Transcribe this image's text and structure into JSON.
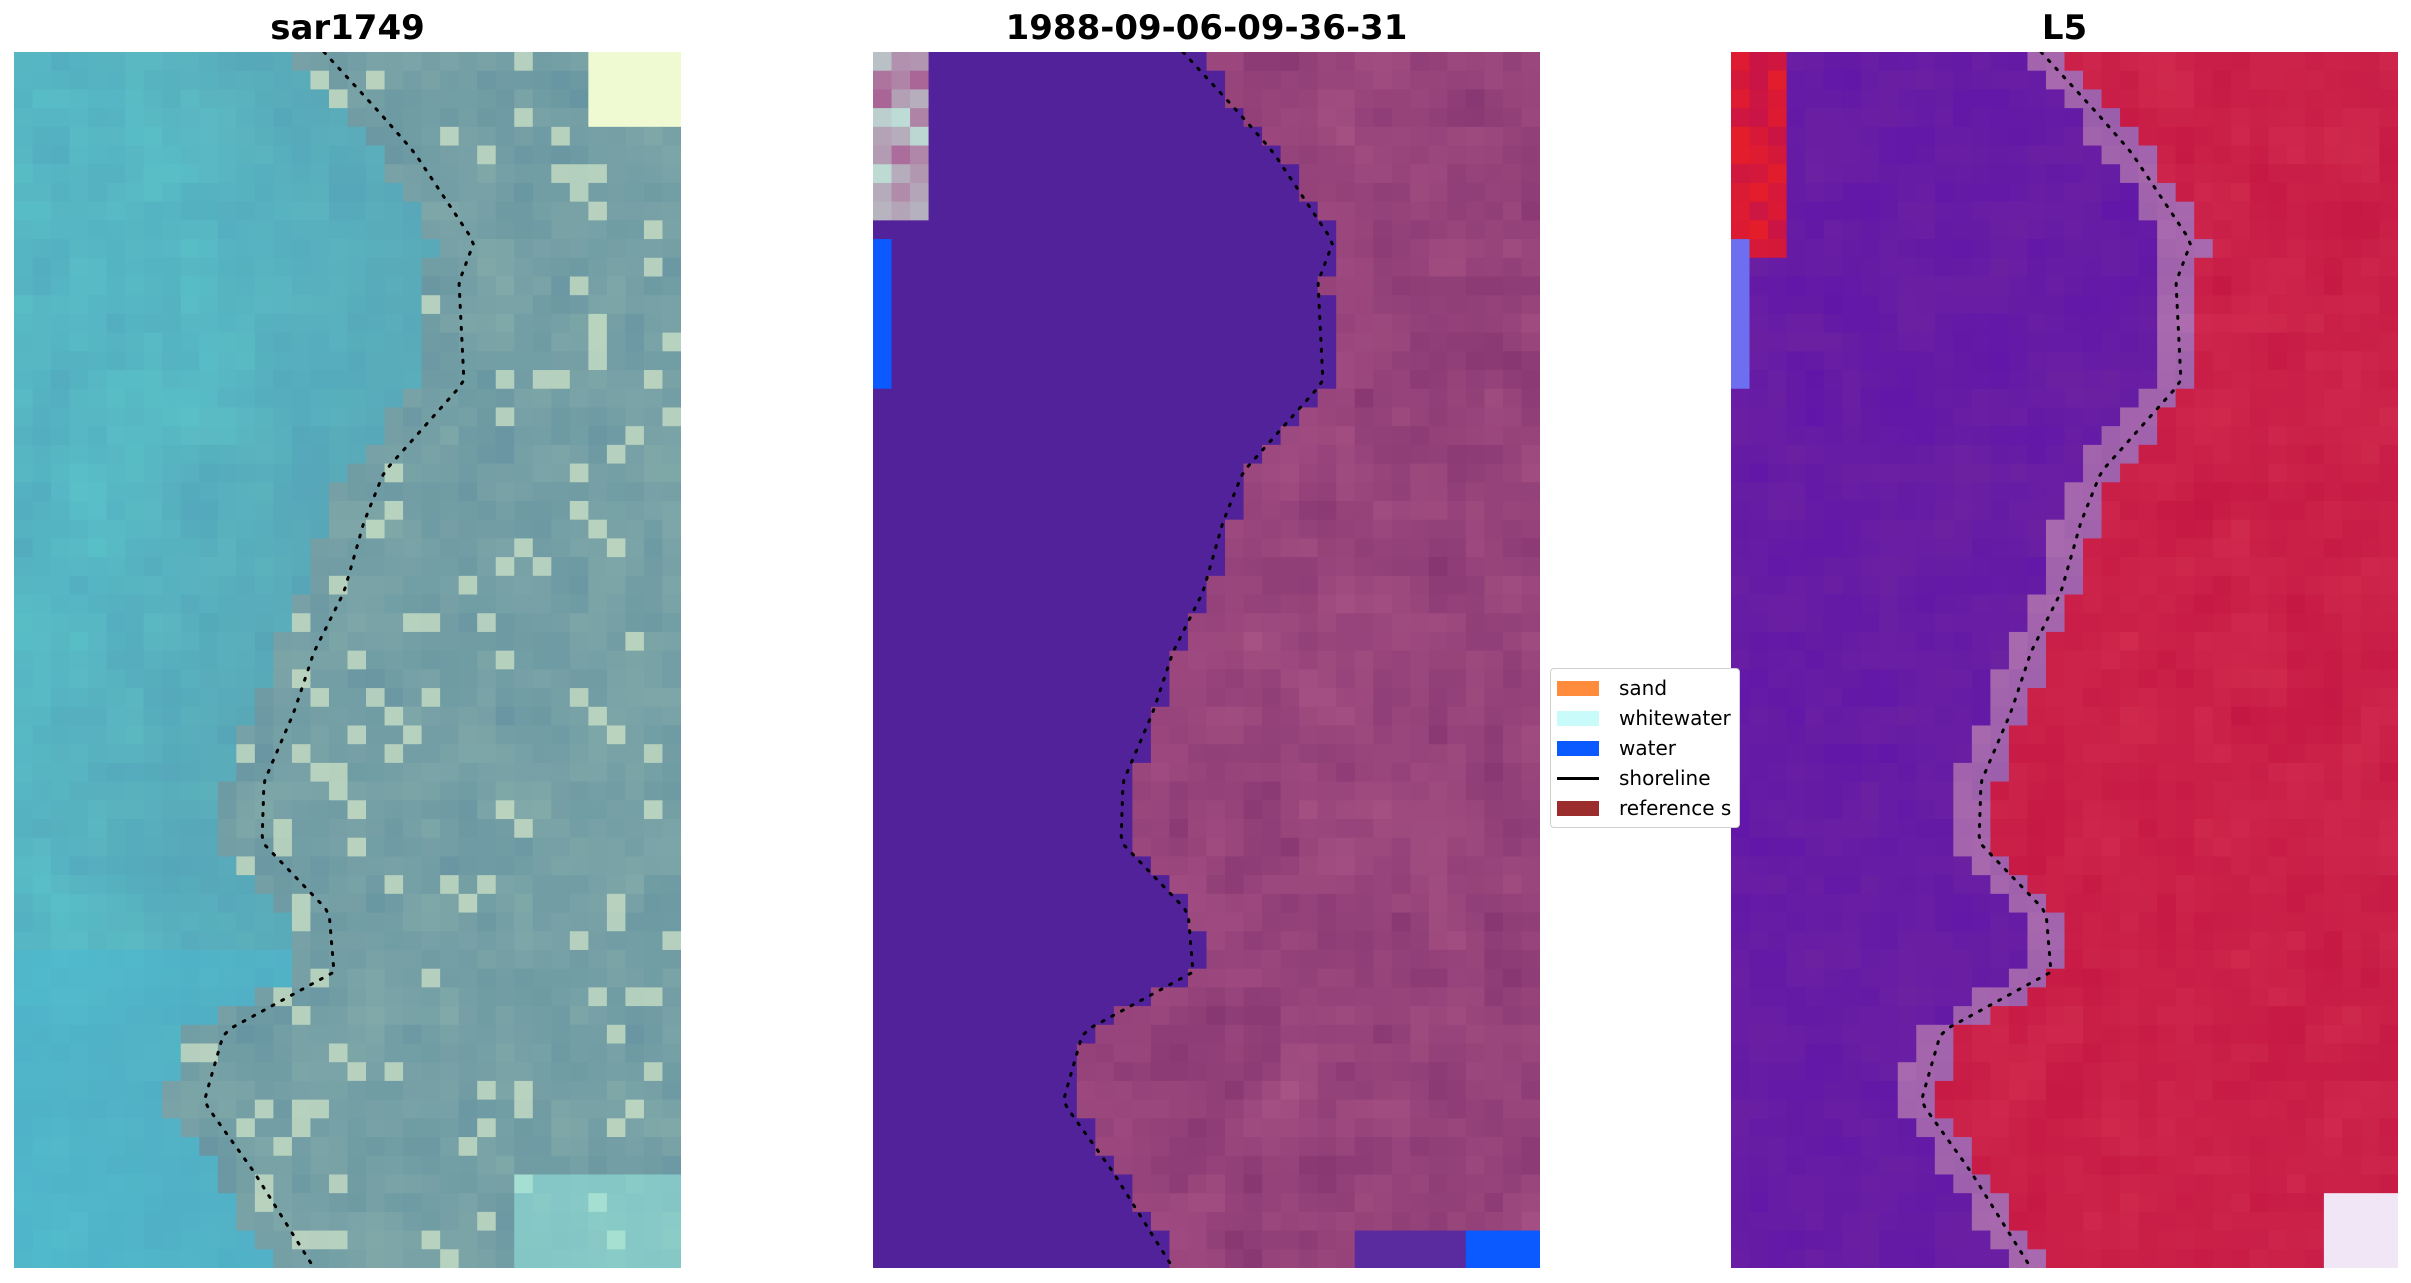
{
  "panels": [
    {
      "title": "sar1749",
      "kind": "rgb-composite"
    },
    {
      "title": "1988-09-06-09-36-31",
      "kind": "classified-overlay"
    },
    {
      "title": "L5",
      "kind": "water-index"
    }
  ],
  "legend": {
    "entries": [
      {
        "label": "sand",
        "color": "#ff8c3c",
        "shape": "patch"
      },
      {
        "label": "whitewater",
        "color": "#c8fbfa",
        "shape": "patch"
      },
      {
        "label": "water",
        "color": "#0a5aff",
        "shape": "patch"
      },
      {
        "label": "shoreline",
        "color": "#000000",
        "shape": "line"
      },
      {
        "label": "reference s",
        "color": "#9b2d2d",
        "shape": "patch"
      }
    ]
  },
  "colors": {
    "sea_class": "#52229a",
    "land_overlay": "#8c3a74",
    "water_index_low": "#5a0aa0",
    "water_index_high": "#c30e3c"
  }
}
